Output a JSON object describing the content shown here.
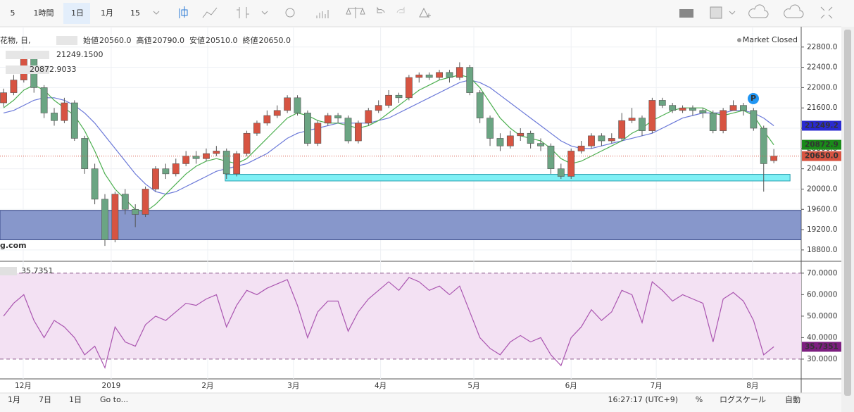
{
  "toolbar": [
    "5",
    "1時間",
    "1日",
    "1月",
    "15"
  ],
  "header": {
    "symbol": "花物, 日,",
    "ohlc": [
      {
        "label": "始値",
        "value": "20560.0"
      },
      {
        "label": "高値",
        "value": "20790.0"
      },
      {
        "label": "安値",
        "value": "20510.0"
      },
      {
        "label": "終値",
        "value": "20650.0"
      }
    ],
    "status": "Market Closed",
    "watermark": "g.com",
    "marker": "P"
  },
  "bottombar": {
    "ranges": [
      "1月",
      "7日",
      "1日"
    ],
    "goto": "Go to...",
    "time": "16:27:17 (UTC+9)",
    "percent": "%",
    "log": "ログスケール",
    "auto": "自動"
  },
  "chart_data": [
    {
      "type": "candlestick",
      "up_color": "#d75442",
      "down_color": "#6ba583",
      "axis_label": "20650.0",
      "xlim": [
        -0.35,
        78.7
      ],
      "ylim": [
        18590,
        23200
      ],
      "grid": true,
      "xticks": [
        {
          "value": 1.94,
          "label": "12月"
        },
        {
          "value": 10.62,
          "label": "2019"
        },
        {
          "value": 20.14,
          "label": "2月"
        },
        {
          "value": 28.6,
          "label": "3月"
        },
        {
          "value": 37.2,
          "label": "4月"
        },
        {
          "value": 46.4,
          "label": "5月"
        },
        {
          "value": 56.0,
          "label": "6月"
        },
        {
          "value": 64.4,
          "label": "7月"
        },
        {
          "value": 73.9,
          "label": "8月"
        }
      ],
      "yticks": [
        {
          "value": 18800,
          "label": "18800.0"
        },
        {
          "value": 19200,
          "label": "19200.0"
        },
        {
          "value": 19600,
          "label": "19600.0"
        },
        {
          "value": 20000,
          "label": "20000.0"
        },
        {
          "value": 20400,
          "label": "20400.0"
        },
        {
          "value": 20800,
          "label": "20800.0"
        },
        {
          "value": 21200,
          "label": "21200.0"
        },
        {
          "value": 21600,
          "label": "21600.0"
        },
        {
          "value": 22000,
          "label": "22000.0"
        },
        {
          "value": 22400,
          "label": "22400.0"
        },
        {
          "value": 22800,
          "label": "22800.0"
        }
      ],
      "open": [
        21700,
        21900,
        22150,
        22600,
        22000,
        21500,
        21350,
        21700,
        21000,
        20400,
        19800,
        19000,
        19900,
        19600,
        19500,
        20000,
        20400,
        20300,
        20500,
        20650,
        20600,
        20700,
        20750,
        20300,
        20700,
        21100,
        21300,
        21450,
        21550,
        21800,
        21500,
        20900,
        21300,
        21450,
        21400,
        20950,
        21300,
        21550,
        21650,
        21850,
        21800,
        22200,
        22250,
        22200,
        22300,
        22200,
        22400,
        21900,
        21400,
        21000,
        20850,
        21050,
        21100,
        20900,
        20850,
        20400,
        20250,
        20750,
        20850,
        21050,
        20950,
        21000,
        21350,
        21400,
        21150,
        21750,
        21650,
        21550,
        21600,
        21550,
        21500,
        21150,
        21550,
        21650,
        21550,
        21200,
        20560
      ],
      "high": [
        21980,
        22250,
        22700,
        22650,
        22050,
        21600,
        21800,
        21750,
        21050,
        20500,
        19900,
        19950,
        20000,
        19700,
        20050,
        20450,
        20500,
        20600,
        20750,
        20750,
        20800,
        20850,
        20800,
        20750,
        21150,
        21350,
        21550,
        21650,
        21850,
        21850,
        21550,
        21350,
        21500,
        21500,
        21450,
        21350,
        21600,
        21750,
        21950,
        21900,
        22250,
        22300,
        22300,
        22350,
        22350,
        22500,
        22450,
        21950,
        21450,
        21100,
        21150,
        21200,
        21150,
        21000,
        20900,
        20500,
        20800,
        20950,
        21100,
        21100,
        21100,
        21500,
        21600,
        21450,
        21800,
        21800,
        21700,
        21650,
        21650,
        21600,
        21550,
        21600,
        21750,
        21700,
        21600,
        21250,
        20790
      ],
      "low": [
        21620,
        21850,
        22100,
        21900,
        21400,
        21250,
        21300,
        20950,
        20300,
        19700,
        18880,
        18950,
        19500,
        19250,
        19450,
        19950,
        20200,
        20250,
        20450,
        20500,
        20550,
        20650,
        20200,
        20250,
        20650,
        21050,
        21250,
        21400,
        21500,
        21450,
        20850,
        20850,
        21250,
        21300,
        20900,
        20900,
        21250,
        21500,
        21600,
        21700,
        21750,
        22100,
        22150,
        22150,
        22100,
        22150,
        21850,
        21300,
        20850,
        20750,
        20800,
        20950,
        20800,
        20750,
        20300,
        20200,
        20200,
        20700,
        20800,
        20850,
        20900,
        20950,
        21300,
        21050,
        21100,
        21600,
        21500,
        21500,
        21450,
        21400,
        21100,
        21100,
        21550,
        21450,
        21150,
        19950,
        20510
      ],
      "close": [
        21900,
        22150,
        22600,
        22000,
        21500,
        21350,
        21700,
        21000,
        20400,
        19800,
        19000,
        19900,
        19600,
        19500,
        20000,
        20400,
        20300,
        20500,
        20650,
        20600,
        20700,
        20750,
        20300,
        20700,
        21100,
        21300,
        21450,
        21550,
        21800,
        21500,
        20900,
        21300,
        21450,
        21400,
        20950,
        21300,
        21550,
        21650,
        21850,
        21800,
        22200,
        22250,
        22200,
        22300,
        22200,
        22400,
        21900,
        21400,
        21000,
        20850,
        21050,
        21100,
        20900,
        20850,
        20400,
        20250,
        20750,
        20850,
        21050,
        20950,
        21000,
        21350,
        21400,
        21150,
        21750,
        21650,
        21550,
        21600,
        21550,
        21500,
        21150,
        21550,
        21650,
        21550,
        21200,
        20500,
        20650
      ],
      "series": [
        {
          "name": "21249.1500",
          "color": "#6a78d8",
          "label_color": "#2a2ad0",
          "axis_label": "21249.2",
          "values": [
            21500,
            21550,
            21650,
            21750,
            21800,
            21800,
            21750,
            21650,
            21500,
            21300,
            21050,
            20800,
            20550,
            20300,
            20100,
            19950,
            19900,
            19950,
            20050,
            20150,
            20250,
            20350,
            20400,
            20450,
            20500,
            20600,
            20700,
            20850,
            21000,
            21100,
            21150,
            21200,
            21250,
            21300,
            21300,
            21300,
            21300,
            21350,
            21400,
            21500,
            21600,
            21700,
            21800,
            21900,
            22000,
            22100,
            22150,
            22100,
            22000,
            21850,
            21700,
            21550,
            21400,
            21250,
            21100,
            20950,
            20850,
            20800,
            20800,
            20850,
            20900,
            20950,
            21000,
            21050,
            21100,
            21200,
            21300,
            21400,
            21450,
            21500,
            21500,
            21500,
            21550,
            21550,
            21500,
            21400,
            21249.15
          ]
        },
        {
          "name": "20872.9033",
          "color": "#4caf50",
          "label_color": "#1a8a1a",
          "axis_label": "20872.9",
          "values": [
            21600,
            21750,
            21950,
            22050,
            21950,
            21750,
            21600,
            21450,
            21150,
            20750,
            20300,
            20000,
            19800,
            19600,
            19550,
            19700,
            19900,
            20100,
            20300,
            20450,
            20550,
            20600,
            20550,
            20500,
            20600,
            20800,
            21000,
            21200,
            21400,
            21500,
            21450,
            21350,
            21300,
            21300,
            21250,
            21200,
            21250,
            21350,
            21500,
            21650,
            21800,
            21950,
            22050,
            22150,
            22200,
            22250,
            22200,
            22000,
            21700,
            21400,
            21200,
            21050,
            21000,
            20950,
            20800,
            20600,
            20500,
            20550,
            20650,
            20750,
            20850,
            20950,
            21100,
            21200,
            21350,
            21450,
            21550,
            21600,
            21600,
            21600,
            21500,
            21450,
            21500,
            21550,
            21450,
            21150,
            20872.9033
          ]
        }
      ],
      "zones": [
        {
          "from": 20160,
          "to": 20290,
          "x_from": 21.87,
          "x_to": 77.6,
          "color": "#7ff0f5",
          "stroke": "#2a9fb0"
        },
        {
          "from": 19000,
          "to": 19580,
          "x_from": -0.35,
          "x_to": 78.7,
          "color": "#8797cb",
          "stroke": "#3a4a8a"
        }
      ]
    },
    {
      "type": "line",
      "xlim": [
        -0.35,
        78.7
      ],
      "ylim": [
        20.8,
        75.2
      ],
      "band": [
        30,
        70
      ],
      "band_color": "#f3e1f3",
      "yticks": [
        {
          "value": 30,
          "label": "30.0000"
        },
        {
          "value": 40,
          "label": "40.0000"
        },
        {
          "value": 50,
          "label": "50.0000"
        },
        {
          "value": 60,
          "label": "60.0000"
        },
        {
          "value": 70,
          "label": "70.0000"
        }
      ],
      "series": [
        {
          "name": "35.7351",
          "color": "#aa55b0",
          "label_color": "#7d1f80",
          "axis_label": "35.7351",
          "values": [
            50,
            56,
            60,
            48,
            40,
            48,
            45,
            40,
            32,
            36,
            26,
            45,
            38,
            36,
            46,
            50,
            48,
            52,
            56,
            55,
            58,
            60,
            45,
            55,
            62,
            60,
            63,
            65,
            67,
            55,
            40,
            52,
            57,
            57,
            43,
            52,
            58,
            62,
            66,
            62,
            68,
            66,
            62,
            64,
            60,
            64,
            52,
            40,
            35,
            32,
            38,
            41,
            38,
            40,
            32,
            27,
            40,
            45,
            53,
            48,
            52,
            62,
            60,
            47,
            66,
            62,
            57,
            60,
            58,
            56,
            38,
            58,
            61,
            57,
            48,
            32,
            35.7351
          ]
        }
      ]
    }
  ]
}
